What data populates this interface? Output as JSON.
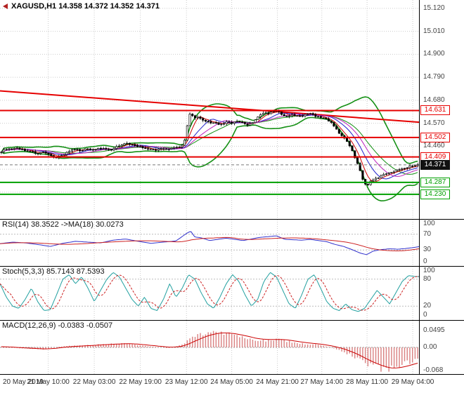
{
  "window": {
    "symbol_ohlc": "XAGUSD,H1 14.358 14.372 14.352 14.371"
  },
  "colors": {
    "grid": "#cccccc",
    "candle": "#000000",
    "bands": "#159015",
    "ma_fast": "#cc0000",
    "ma_mid": "#2222cc",
    "ma_slow": "#bb22bb",
    "trendline": "#e60000",
    "level_red": "#e60000",
    "level_green": "#00a000",
    "rsi": "#3030cc",
    "rsi_ma": "#cc2020",
    "stoch_k": "#22a0a0",
    "stoch_d": "#cc2020",
    "macd_bar": "#d98080",
    "macd_signal": "#cc0000"
  },
  "time_axis": {
    "labels": [
      "20 May 2019",
      "21 May 10:00",
      "22 May 03:00",
      "22 May 19:00",
      "23 May 12:00",
      "24 May 05:00",
      "24 May 21:00",
      "27 May 14:00",
      "28 May 11:00",
      "29 May 04:00"
    ],
    "fractions": [
      0.005,
      0.115,
      0.225,
      0.335,
      0.445,
      0.553,
      0.662,
      0.768,
      0.876,
      0.985
    ]
  },
  "chart_data": [
    {
      "type": "candlestick",
      "title": "XAGUSD H1",
      "last_ohlc": {
        "open": 14.358,
        "high": 14.372,
        "low": 14.352,
        "close": 14.371
      },
      "bars": 160,
      "y_axis": {
        "min": 14.112,
        "max": 15.16,
        "labels": [
          "15.120",
          "15.010",
          "14.900",
          "14.790",
          "14.680",
          "14.570",
          "14.460"
        ],
        "values": [
          15.12,
          15.01,
          14.9,
          14.79,
          14.68,
          14.57,
          14.46
        ],
        "grid_values": [
          15.12,
          15.01,
          14.9,
          14.79,
          14.68,
          14.57,
          14.46,
          14.35,
          14.24
        ]
      },
      "close_path": [
        [
          0.0,
          14.435
        ],
        [
          0.012,
          14.448
        ],
        [
          0.025,
          14.444
        ],
        [
          0.04,
          14.452
        ],
        [
          0.055,
          14.44
        ],
        [
          0.07,
          14.436
        ],
        [
          0.085,
          14.426
        ],
        [
          0.1,
          14.43
        ],
        [
          0.115,
          14.418
        ],
        [
          0.13,
          14.406
        ],
        [
          0.145,
          14.416
        ],
        [
          0.16,
          14.434
        ],
        [
          0.175,
          14.444
        ],
        [
          0.19,
          14.44
        ],
        [
          0.205,
          14.448
        ],
        [
          0.22,
          14.444
        ],
        [
          0.235,
          14.45
        ],
        [
          0.25,
          14.446
        ],
        [
          0.265,
          14.442
        ],
        [
          0.28,
          14.46
        ],
        [
          0.295,
          14.474
        ],
        [
          0.31,
          14.47
        ],
        [
          0.325,
          14.462
        ],
        [
          0.34,
          14.452
        ],
        [
          0.355,
          14.446
        ],
        [
          0.37,
          14.44
        ],
        [
          0.385,
          14.45
        ],
        [
          0.4,
          14.446
        ],
        [
          0.415,
          14.454
        ],
        [
          0.43,
          14.46
        ],
        [
          0.438,
          14.468
        ],
        [
          0.444,
          14.52
        ],
        [
          0.45,
          14.605
        ],
        [
          0.456,
          14.622
        ],
        [
          0.463,
          14.592
        ],
        [
          0.472,
          14.597
        ],
        [
          0.482,
          14.586
        ],
        [
          0.492,
          14.58
        ],
        [
          0.502,
          14.572
        ],
        [
          0.512,
          14.576
        ],
        [
          0.522,
          14.562
        ],
        [
          0.532,
          14.566
        ],
        [
          0.542,
          14.576
        ],
        [
          0.552,
          14.57
        ],
        [
          0.562,
          14.58
        ],
        [
          0.572,
          14.576
        ],
        [
          0.582,
          14.57
        ],
        [
          0.592,
          14.562
        ],
        [
          0.602,
          14.572
        ],
        [
          0.612,
          14.59
        ],
        [
          0.622,
          14.61
        ],
        [
          0.632,
          14.62
        ],
        [
          0.642,
          14.616
        ],
        [
          0.652,
          14.626
        ],
        [
          0.662,
          14.632
        ],
        [
          0.672,
          14.612
        ],
        [
          0.682,
          14.602
        ],
        [
          0.692,
          14.606
        ],
        [
          0.702,
          14.612
        ],
        [
          0.712,
          14.602
        ],
        [
          0.722,
          14.606
        ],
        [
          0.732,
          14.612
        ],
        [
          0.742,
          14.616
        ],
        [
          0.752,
          14.606
        ],
        [
          0.762,
          14.6
        ],
        [
          0.772,
          14.596
        ],
        [
          0.782,
          14.59
        ],
        [
          0.792,
          14.572
        ],
        [
          0.802,
          14.552
        ],
        [
          0.812,
          14.522
        ],
        [
          0.822,
          14.5
        ],
        [
          0.832,
          14.478
        ],
        [
          0.842,
          14.44
        ],
        [
          0.85,
          14.4
        ],
        [
          0.857,
          14.368
        ],
        [
          0.864,
          14.33
        ],
        [
          0.871,
          14.284
        ],
        [
          0.878,
          14.272
        ],
        [
          0.886,
          14.29
        ],
        [
          0.895,
          14.3
        ],
        [
          0.905,
          14.31
        ],
        [
          0.915,
          14.32
        ],
        [
          0.925,
          14.33
        ],
        [
          0.935,
          14.336
        ],
        [
          0.945,
          14.342
        ],
        [
          0.955,
          14.35
        ],
        [
          0.965,
          14.356
        ],
        [
          0.975,
          14.36
        ],
        [
          0.986,
          14.366
        ],
        [
          1.0,
          14.371
        ]
      ],
      "levels": [
        {
          "price": 14.631,
          "label": "14.631",
          "color": "#e60000"
        },
        {
          "price": 14.502,
          "label": "14.502",
          "color": "#e60000"
        },
        {
          "price": 14.409,
          "label": "14.409",
          "color": "#e60000"
        },
        {
          "price": 14.287,
          "label": "14.287",
          "color": "#00a000"
        },
        {
          "price": 14.23,
          "label": "14.230",
          "color": "#00a000"
        }
      ],
      "current_price": {
        "value": 14.371,
        "label": "14.371"
      },
      "trendline": {
        "x1": 0,
        "price1": 14.725,
        "x2": 1,
        "price2": 14.575
      },
      "overlays": [
        "Bollinger Bands (green)",
        "fast MAs (red/blue/magenta)",
        "declining red trendline"
      ]
    },
    {
      "type": "line",
      "label": "RSI(14) 38.3522  ->MA(18) 30.0273",
      "name": "RSI(14)",
      "value": 38.3522,
      "ma_name": "MA(18)",
      "ma_value": 30.0273,
      "ylim": [
        0,
        100
      ],
      "axis_labels": [
        "100",
        "70",
        "30",
        "0"
      ],
      "axis_values": [
        100,
        70,
        30,
        0
      ],
      "guides": [
        70,
        30
      ],
      "points": [
        [
          0,
          46
        ],
        [
          0.03,
          50
        ],
        [
          0.06,
          48
        ],
        [
          0.09,
          44
        ],
        [
          0.12,
          39
        ],
        [
          0.15,
          47
        ],
        [
          0.18,
          52
        ],
        [
          0.21,
          50
        ],
        [
          0.24,
          48
        ],
        [
          0.27,
          55
        ],
        [
          0.3,
          58
        ],
        [
          0.33,
          52
        ],
        [
          0.36,
          47
        ],
        [
          0.39,
          50
        ],
        [
          0.42,
          53
        ],
        [
          0.445,
          72
        ],
        [
          0.455,
          78
        ],
        [
          0.465,
          63
        ],
        [
          0.48,
          61
        ],
        [
          0.5,
          54
        ],
        [
          0.52,
          57
        ],
        [
          0.54,
          60
        ],
        [
          0.56,
          57
        ],
        [
          0.58,
          54
        ],
        [
          0.6,
          58
        ],
        [
          0.62,
          62
        ],
        [
          0.64,
          64
        ],
        [
          0.66,
          66
        ],
        [
          0.68,
          57
        ],
        [
          0.7,
          56
        ],
        [
          0.72,
          55
        ],
        [
          0.74,
          57
        ],
        [
          0.76,
          54
        ],
        [
          0.78,
          51
        ],
        [
          0.8,
          44
        ],
        [
          0.82,
          39
        ],
        [
          0.84,
          31
        ],
        [
          0.86,
          22
        ],
        [
          0.875,
          18
        ],
        [
          0.89,
          27
        ],
        [
          0.91,
          31
        ],
        [
          0.93,
          33
        ],
        [
          0.95,
          32
        ],
        [
          0.97,
          34
        ],
        [
          0.985,
          36
        ],
        [
          1,
          38.35
        ]
      ]
    },
    {
      "type": "line",
      "label": "Stoch(5,3,3) 85.7143 87.5393",
      "k_value": 85.7143,
      "d_value": 87.5393,
      "ylim": [
        0,
        100
      ],
      "axis_labels": [
        "100",
        "80",
        "20",
        "0"
      ],
      "axis_values": [
        100,
        80,
        20,
        0
      ],
      "guides": [
        80,
        20
      ],
      "points": [
        [
          0,
          70
        ],
        [
          0.015,
          40
        ],
        [
          0.03,
          20
        ],
        [
          0.045,
          15
        ],
        [
          0.06,
          35
        ],
        [
          0.075,
          60
        ],
        [
          0.09,
          30
        ],
        [
          0.105,
          10
        ],
        [
          0.12,
          12
        ],
        [
          0.135,
          45
        ],
        [
          0.15,
          80
        ],
        [
          0.165,
          90
        ],
        [
          0.18,
          70
        ],
        [
          0.195,
          85
        ],
        [
          0.21,
          60
        ],
        [
          0.225,
          30
        ],
        [
          0.24,
          55
        ],
        [
          0.255,
          80
        ],
        [
          0.27,
          95
        ],
        [
          0.285,
          85
        ],
        [
          0.3,
          60
        ],
        [
          0.315,
          35
        ],
        [
          0.33,
          20
        ],
        [
          0.345,
          40
        ],
        [
          0.36,
          15
        ],
        [
          0.375,
          10
        ],
        [
          0.39,
          35
        ],
        [
          0.405,
          70
        ],
        [
          0.42,
          40
        ],
        [
          0.435,
          60
        ],
        [
          0.45,
          90
        ],
        [
          0.465,
          80
        ],
        [
          0.48,
          50
        ],
        [
          0.495,
          25
        ],
        [
          0.51,
          15
        ],
        [
          0.525,
          40
        ],
        [
          0.54,
          70
        ],
        [
          0.555,
          90
        ],
        [
          0.57,
          75
        ],
        [
          0.585,
          45
        ],
        [
          0.6,
          20
        ],
        [
          0.615,
          35
        ],
        [
          0.63,
          75
        ],
        [
          0.645,
          95
        ],
        [
          0.66,
          85
        ],
        [
          0.675,
          55
        ],
        [
          0.69,
          25
        ],
        [
          0.705,
          15
        ],
        [
          0.72,
          45
        ],
        [
          0.735,
          80
        ],
        [
          0.75,
          90
        ],
        [
          0.765,
          60
        ],
        [
          0.78,
          30
        ],
        [
          0.795,
          15
        ],
        [
          0.81,
          10
        ],
        [
          0.825,
          25
        ],
        [
          0.84,
          12
        ],
        [
          0.855,
          8
        ],
        [
          0.87,
          15
        ],
        [
          0.885,
          35
        ],
        [
          0.9,
          55
        ],
        [
          0.915,
          40
        ],
        [
          0.93,
          25
        ],
        [
          0.945,
          50
        ],
        [
          0.96,
          75
        ],
        [
          0.975,
          88
        ],
        [
          0.99,
          86
        ],
        [
          1,
          85.7
        ]
      ]
    },
    {
      "type": "bar",
      "label": "MACD(12,26,9) -0.0383 -0.0507",
      "macd_value": -0.0383,
      "signal_value": -0.0507,
      "ylim": [
        -0.0707,
        0.0707
      ],
      "axis_labels": [
        "0.0495",
        "0.00",
        "-0.068"
      ],
      "axis_values": [
        0.0495,
        0,
        -0.068
      ],
      "points": [
        [
          0,
          0.002
        ],
        [
          0.05,
          -0.003
        ],
        [
          0.1,
          -0.006
        ],
        [
          0.15,
          0.004
        ],
        [
          0.2,
          0.006
        ],
        [
          0.25,
          0.01
        ],
        [
          0.3,
          0.012
        ],
        [
          0.35,
          0.004
        ],
        [
          0.4,
          -0.002
        ],
        [
          0.43,
          0.006
        ],
        [
          0.46,
          0.03
        ],
        [
          0.49,
          0.044
        ],
        [
          0.52,
          0.048
        ],
        [
          0.55,
          0.04
        ],
        [
          0.58,
          0.03
        ],
        [
          0.61,
          0.02
        ],
        [
          0.64,
          0.022
        ],
        [
          0.67,
          0.024
        ],
        [
          0.7,
          0.015
        ],
        [
          0.73,
          0.01
        ],
        [
          0.76,
          0.008
        ],
        [
          0.79,
          0
        ],
        [
          0.82,
          -0.012
        ],
        [
          0.85,
          -0.03
        ],
        [
          0.88,
          -0.052
        ],
        [
          0.91,
          -0.064
        ],
        [
          0.93,
          -0.068
        ],
        [
          0.95,
          -0.06
        ],
        [
          0.97,
          -0.05
        ],
        [
          0.985,
          -0.043
        ],
        [
          1,
          -0.0383
        ]
      ]
    }
  ]
}
